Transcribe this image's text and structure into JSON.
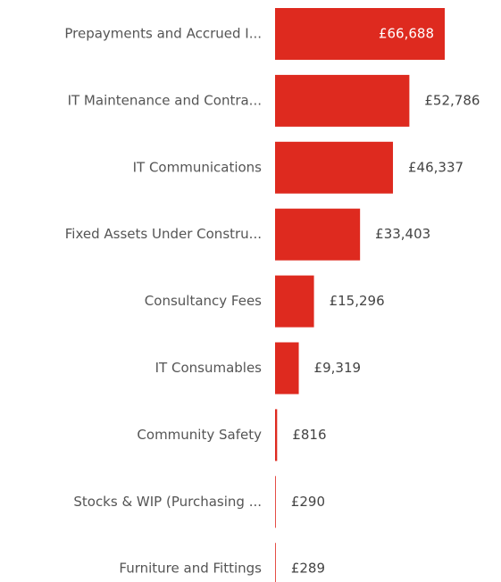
{
  "chart_data": {
    "type": "bar",
    "orientation": "horizontal",
    "color": "#de2a1f",
    "categories": [
      "Prepayments and Accrued I...",
      "IT Maintenance and Contra...",
      "IT Communications",
      "Fixed Assets Under Constru...",
      "Consultancy Fees",
      "IT Consumables",
      "Community Safety",
      "Stocks & WIP (Purchasing ...",
      "Furniture and Fittings"
    ],
    "values": [
      66688,
      52786,
      46337,
      33403,
      15296,
      9319,
      816,
      290,
      289
    ],
    "value_labels": [
      "£66,688",
      "£52,786",
      "£46,337",
      "£33,403",
      "£15,296",
      "£9,319",
      "£816",
      "£290",
      "£289"
    ]
  }
}
